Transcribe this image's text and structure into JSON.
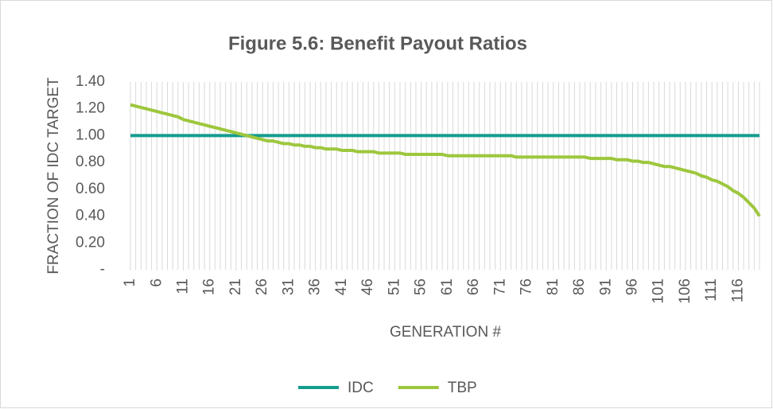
{
  "chart_data": {
    "type": "line",
    "title": "Figure 5.6: Benefit Payout Ratios",
    "x_label": "GENERATION #",
    "y_label": "FRACTION OF IDC TARGET",
    "x": [
      1,
      2,
      3,
      4,
      5,
      6,
      7,
      8,
      9,
      10,
      11,
      12,
      13,
      14,
      15,
      16,
      17,
      18,
      19,
      20,
      21,
      22,
      23,
      24,
      25,
      26,
      27,
      28,
      29,
      30,
      31,
      32,
      33,
      34,
      35,
      36,
      37,
      38,
      39,
      40,
      41,
      42,
      43,
      44,
      45,
      46,
      47,
      48,
      49,
      50,
      51,
      52,
      53,
      54,
      55,
      56,
      57,
      58,
      59,
      60,
      61,
      62,
      63,
      64,
      65,
      66,
      67,
      68,
      69,
      70,
      71,
      72,
      73,
      74,
      75,
      76,
      77,
      78,
      79,
      80,
      81,
      82,
      83,
      84,
      85,
      86,
      87,
      88,
      89,
      90,
      91,
      92,
      93,
      94,
      95,
      96,
      97,
      98,
      99,
      100,
      101,
      102,
      103,
      104,
      105,
      106,
      107,
      108,
      109,
      110,
      111,
      112,
      113,
      114,
      115,
      116,
      117,
      118,
      119,
      120
    ],
    "xlim": [
      1,
      120
    ],
    "xticks": [
      1,
      6,
      11,
      16,
      21,
      26,
      31,
      36,
      41,
      46,
      51,
      56,
      61,
      66,
      71,
      76,
      81,
      86,
      91,
      96,
      101,
      106,
      111,
      116
    ],
    "ylim": [
      0,
      1.4
    ],
    "yticks": [
      {
        "value": 0,
        "label": "-"
      },
      {
        "value": 0.2,
        "label": "0.20"
      },
      {
        "value": 0.4,
        "label": "0.40"
      },
      {
        "value": 0.6,
        "label": "0.60"
      },
      {
        "value": 0.8,
        "label": "0.80"
      },
      {
        "value": 1,
        "label": "1.00"
      },
      {
        "value": 1.2,
        "label": "1.20"
      },
      {
        "value": 1.4,
        "label": "1.40"
      }
    ],
    "grid": true,
    "legend": "bottom",
    "series": [
      {
        "name": "IDC",
        "color": "#149c8f",
        "values": [
          1,
          1,
          1,
          1,
          1,
          1,
          1,
          1,
          1,
          1,
          1,
          1,
          1,
          1,
          1,
          1,
          1,
          1,
          1,
          1,
          1,
          1,
          1,
          1,
          1,
          1,
          1,
          1,
          1,
          1,
          1,
          1,
          1,
          1,
          1,
          1,
          1,
          1,
          1,
          1,
          1,
          1,
          1,
          1,
          1,
          1,
          1,
          1,
          1,
          1,
          1,
          1,
          1,
          1,
          1,
          1,
          1,
          1,
          1,
          1,
          1,
          1,
          1,
          1,
          1,
          1,
          1,
          1,
          1,
          1,
          1,
          1,
          1,
          1,
          1,
          1,
          1,
          1,
          1,
          1,
          1,
          1,
          1,
          1,
          1,
          1,
          1,
          1,
          1,
          1,
          1,
          1,
          1,
          1,
          1,
          1,
          1,
          1,
          1,
          1,
          1,
          1,
          1,
          1,
          1,
          1,
          1,
          1,
          1,
          1,
          1,
          1,
          1,
          1,
          1,
          1,
          1,
          1,
          1,
          1
        ]
      },
      {
        "name": "TBP",
        "color": "#9dc73d",
        "values": [
          1.23,
          1.22,
          1.21,
          1.2,
          1.19,
          1.18,
          1.17,
          1.16,
          1.15,
          1.14,
          1.12,
          1.11,
          1.1,
          1.09,
          1.08,
          1.07,
          1.06,
          1.05,
          1.04,
          1.03,
          1.02,
          1.01,
          1.0,
          0.99,
          0.98,
          0.97,
          0.96,
          0.96,
          0.95,
          0.94,
          0.94,
          0.93,
          0.93,
          0.92,
          0.92,
          0.91,
          0.91,
          0.9,
          0.9,
          0.9,
          0.89,
          0.89,
          0.89,
          0.88,
          0.88,
          0.88,
          0.88,
          0.87,
          0.87,
          0.87,
          0.87,
          0.87,
          0.86,
          0.86,
          0.86,
          0.86,
          0.86,
          0.86,
          0.86,
          0.86,
          0.85,
          0.85,
          0.85,
          0.85,
          0.85,
          0.85,
          0.85,
          0.85,
          0.85,
          0.85,
          0.85,
          0.85,
          0.85,
          0.84,
          0.84,
          0.84,
          0.84,
          0.84,
          0.84,
          0.84,
          0.84,
          0.84,
          0.84,
          0.84,
          0.84,
          0.84,
          0.84,
          0.83,
          0.83,
          0.83,
          0.83,
          0.83,
          0.82,
          0.82,
          0.82,
          0.81,
          0.81,
          0.8,
          0.8,
          0.79,
          0.78,
          0.77,
          0.77,
          0.76,
          0.75,
          0.74,
          0.73,
          0.72,
          0.7,
          0.69,
          0.67,
          0.66,
          0.64,
          0.62,
          0.59,
          0.57,
          0.54,
          0.5,
          0.46,
          0.4
        ]
      }
    ]
  }
}
